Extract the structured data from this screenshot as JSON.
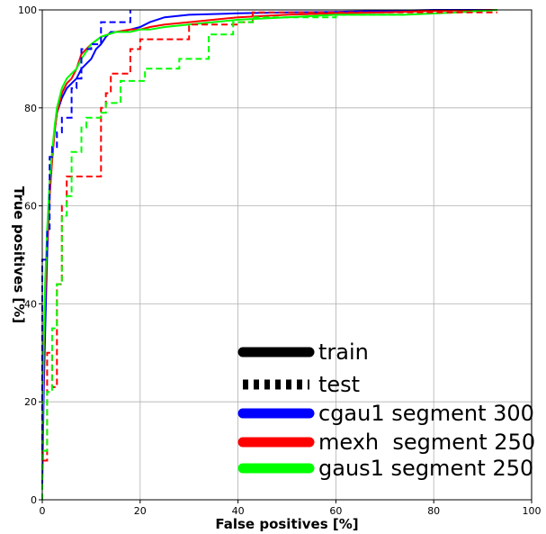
{
  "chart_data": {
    "type": "line",
    "xlabel": "False positives [%]",
    "ylabel": "True positives [%]",
    "xlim": [
      0,
      100
    ],
    "ylim": [
      0,
      100
    ],
    "xticks": [
      0,
      20,
      40,
      60,
      80,
      100
    ],
    "yticks": [
      0,
      20,
      40,
      60,
      80,
      100
    ],
    "grid": true,
    "legend_position": "bottom-right",
    "legend": [
      {
        "label": "train",
        "color": "#000000",
        "style": "solid"
      },
      {
        "label": "test",
        "color": "#000000",
        "style": "dashed"
      },
      {
        "label": "cgau1 segment 300",
        "color": "#0000ff",
        "style": "solid"
      },
      {
        "label": "mexh  segment 250",
        "color": "#ff0000",
        "style": "solid"
      },
      {
        "label": "gaus1 segment 250",
        "color": "#00ff00",
        "style": "solid"
      }
    ],
    "series": [
      {
        "color": "#0000ff",
        "style": "solid",
        "x": [
          0,
          0.3,
          0.6,
          1,
          1.5,
          2,
          2.5,
          3,
          4,
          5,
          6,
          7,
          8,
          9,
          10,
          11,
          12,
          13,
          14,
          16,
          18,
          20,
          22,
          25,
          30,
          40,
          50,
          60,
          70,
          80,
          93
        ],
        "y": [
          3,
          22,
          35,
          50,
          63,
          70,
          75,
          79,
          82,
          84,
          85,
          86,
          88,
          89,
          90,
          92,
          93,
          94.5,
          95.5,
          95.5,
          96,
          96.5,
          97.5,
          98.5,
          99,
          99.3,
          99.5,
          99.6,
          99.8,
          100,
          100
        ]
      },
      {
        "color": "#ff0000",
        "style": "solid",
        "x": [
          0,
          0.3,
          0.6,
          1,
          1.5,
          2,
          2.5,
          3,
          4,
          5,
          6,
          7,
          8,
          10,
          12,
          15,
          18,
          20,
          22,
          25,
          30,
          40,
          50,
          60,
          70,
          80,
          93
        ],
        "y": [
          8,
          30,
          42,
          52,
          62,
          69,
          75,
          79,
          83,
          85,
          86,
          88,
          91,
          93,
          94.5,
          95.5,
          96,
          96,
          96.5,
          97,
          97.5,
          98.5,
          99,
          99.3,
          99.5,
          99.8,
          100
        ]
      },
      {
        "color": "#00ff00",
        "style": "solid",
        "x": [
          0,
          0.3,
          0.6,
          1,
          1.5,
          2,
          2.5,
          3,
          4,
          5,
          6,
          7,
          8,
          10,
          12,
          15,
          18,
          20,
          22,
          25,
          30,
          40,
          50,
          60,
          74,
          85,
          93
        ],
        "y": [
          10,
          32,
          45,
          55,
          65,
          71,
          76,
          80,
          84,
          86,
          87,
          88,
          90,
          93,
          94.5,
          95.5,
          95.5,
          96,
          96,
          96.5,
          97,
          98,
          98.5,
          99,
          99,
          99.5,
          100
        ]
      },
      {
        "color": "#0000ff",
        "style": "dashed",
        "x": [
          0,
          0,
          1,
          1,
          1.5,
          1.5,
          2,
          2,
          3,
          3,
          4,
          4,
          6,
          6,
          7,
          7,
          8,
          8,
          10,
          10,
          12,
          12,
          18,
          18
        ],
        "y": [
          0,
          49,
          49,
          55,
          55,
          70,
          70,
          72,
          72,
          75,
          75,
          78,
          78,
          84,
          84,
          86,
          86,
          92,
          92,
          93,
          93,
          97.5,
          97.5,
          100
        ]
      },
      {
        "color": "#ff0000",
        "style": "dashed",
        "x": [
          0,
          0,
          1,
          1,
          2,
          2,
          3,
          3,
          4,
          4,
          5,
          5,
          12,
          12,
          13,
          13,
          14,
          14,
          16,
          16,
          18,
          18,
          20,
          20,
          25,
          25,
          30,
          30,
          40,
          40,
          43,
          43,
          93
        ],
        "y": [
          0,
          8,
          8,
          30,
          30,
          23,
          23,
          44,
          44,
          60,
          60,
          66,
          66,
          80,
          80,
          83,
          83,
          87,
          87,
          87,
          87,
          92,
          92,
          94,
          94,
          94,
          94,
          97,
          97,
          97.5,
          97.5,
          99.5,
          99.5
        ]
      },
      {
        "color": "#00ff00",
        "style": "dashed",
        "x": [
          0,
          0,
          1,
          1,
          2,
          2,
          3,
          3,
          4,
          4,
          5,
          5,
          6,
          6,
          8,
          8,
          9,
          9,
          12,
          12,
          13,
          13,
          16,
          16,
          21,
          21,
          28,
          28,
          34,
          34,
          39,
          39,
          43,
          43,
          60,
          60,
          74
        ],
        "y": [
          0,
          10,
          10,
          22,
          22,
          35,
          35,
          44,
          44,
          58,
          58,
          62,
          62,
          71,
          71,
          76,
          76,
          78,
          78,
          79,
          79,
          81,
          81,
          85.5,
          85.5,
          88,
          88,
          90,
          90,
          95,
          95,
          97.5,
          97.5,
          98.5,
          98.5,
          99,
          99
        ]
      }
    ]
  }
}
